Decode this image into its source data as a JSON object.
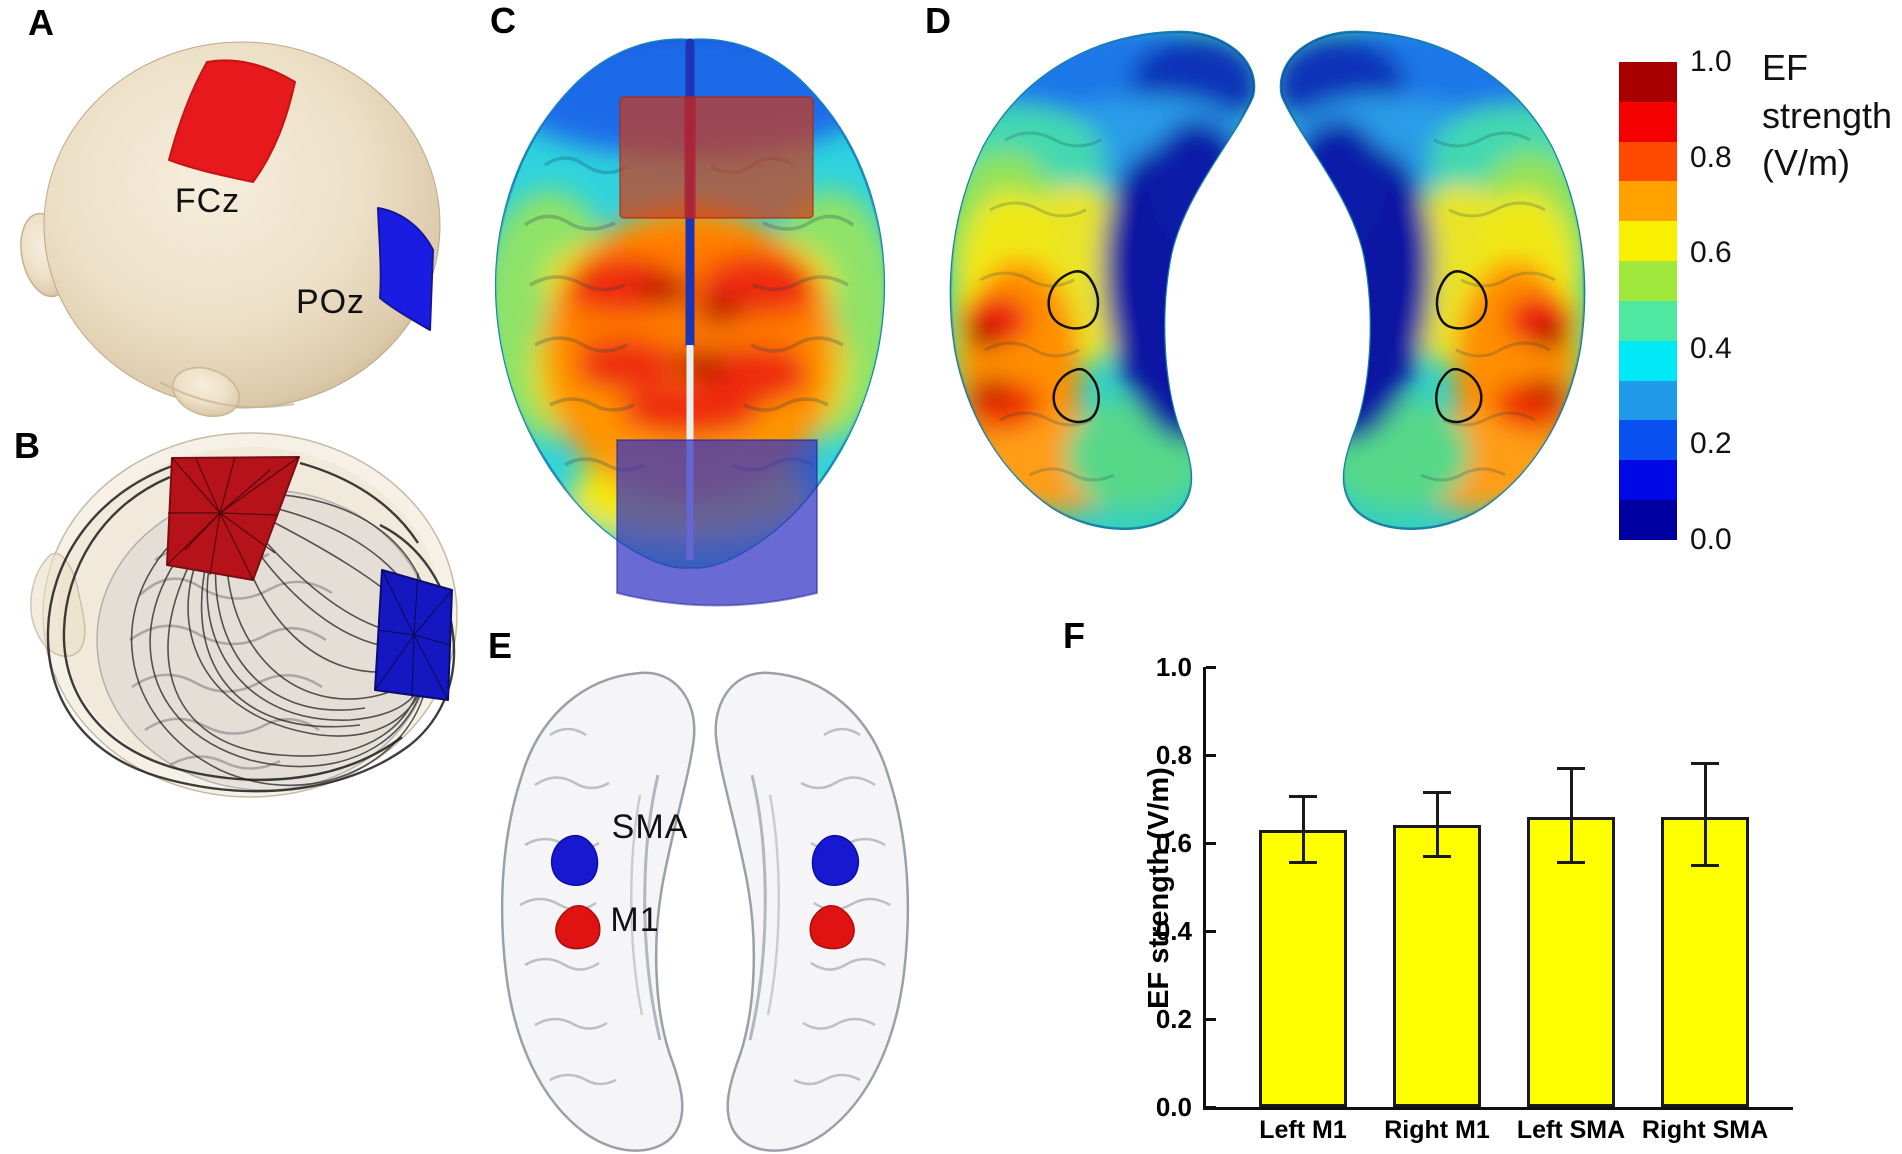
{
  "panels": {
    "a": "A",
    "b": "B",
    "c": "C",
    "d": "D",
    "e": "E",
    "f": "F"
  },
  "panel_a": {
    "electrodes": [
      {
        "label": "FCz",
        "color": "#e8191c"
      },
      {
        "label": "POz",
        "color": "#1b1ce2"
      }
    ]
  },
  "panel_b": {
    "anode_color": "#b5121a",
    "cathode_color": "#1518c0"
  },
  "panel_e": {
    "regions": [
      {
        "label": "SMA",
        "color": "#1818d0"
      },
      {
        "label": "M1",
        "color": "#e01212"
      }
    ]
  },
  "colorbar": {
    "title_lines": [
      "EF",
      "strength",
      "(V/m)"
    ],
    "tick_labels": [
      "1.0",
      "0.8",
      "0.6",
      "0.4",
      "0.2",
      "0.0"
    ],
    "segments_top_to_bottom": [
      "#a80000",
      "#f50000",
      "#fd4a00",
      "#ffa200",
      "#f8f000",
      "#9fe83c",
      "#4fe8a0",
      "#00e8f5",
      "#1f9ae8",
      "#0b50f0",
      "#0008e8",
      "#0000a0"
    ]
  },
  "chart_data": {
    "type": "bar",
    "panel_label": "F",
    "categories": [
      "Left M1",
      "Right M1",
      "Left SMA",
      "Right SMA"
    ],
    "values": [
      0.63,
      0.64,
      0.66,
      0.66
    ],
    "error_upper": [
      0.705,
      0.715,
      0.77,
      0.78
    ],
    "error_lower": [
      0.555,
      0.57,
      0.555,
      0.55
    ],
    "ylabel": "EF strength (V/m)",
    "ylim": [
      0.0,
      1.0
    ],
    "ytick_labels_top_to_bottom": [
      "1.0",
      "0.8",
      "0.6",
      "0.4",
      "0.2",
      "0.0"
    ],
    "bar_color": "#ffff00",
    "bar_border_color": "#1a1a1a",
    "error_color": "#1a1a1a",
    "legend": "none",
    "grid": "off"
  }
}
